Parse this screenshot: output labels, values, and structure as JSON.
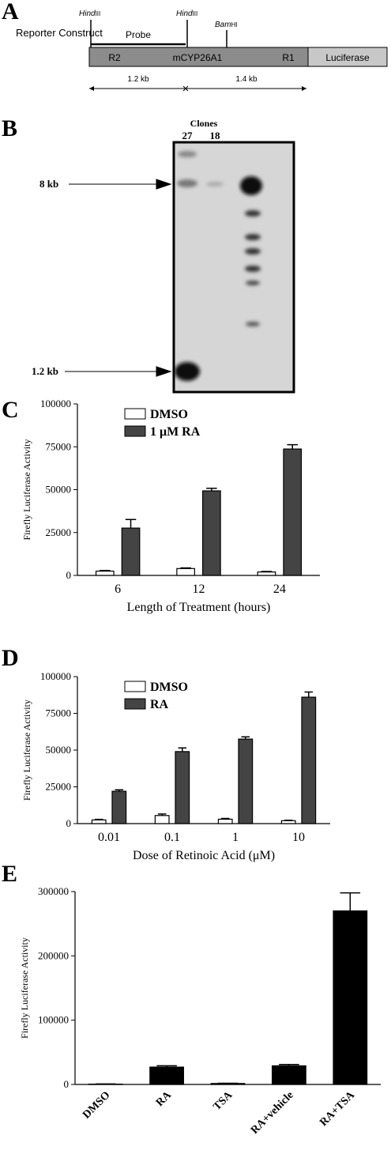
{
  "panel_labels": [
    "A",
    "B",
    "C",
    "D",
    "E"
  ],
  "construct": {
    "title": "Reporter Construct",
    "sites": [
      {
        "name": "Hind",
        "suffix": "III"
      },
      {
        "name": "Hind",
        "suffix": "III"
      },
      {
        "name": "Bam",
        "suffix": "HI"
      }
    ],
    "probe": "Probe",
    "regions": [
      "R2",
      "mCYP26A1",
      "R1"
    ],
    "reporter": "Luciferase",
    "distances": [
      "1.2 kb",
      "1.4 kb"
    ]
  },
  "blot": {
    "header": "Clones",
    "lanes": [
      "27",
      "18"
    ],
    "markers": [
      "8 kb",
      "1.2 kb"
    ]
  },
  "chart_data": [
    {
      "type": "bar",
      "ylabel": "Firefly Luciferase Activity",
      "xlabel": "Length of Treatment (hours)",
      "categories": [
        "6",
        "12",
        "24"
      ],
      "series": [
        {
          "name": "DMSO",
          "color": "#ffffff",
          "values": [
            2500,
            4000,
            2000
          ],
          "errors": [
            400,
            400,
            300
          ]
        },
        {
          "name": "1 μM RA",
          "color": "#444444",
          "values": [
            27600,
            49300,
            73700
          ],
          "errors": [
            5000,
            1500,
            2500
          ]
        }
      ],
      "ylim": [
        0,
        100000
      ],
      "yticks": [
        0,
        25000,
        50000,
        75000,
        100000
      ],
      "legend": "upper left"
    },
    {
      "type": "bar",
      "ylabel": "Firefly Luciferase Activity",
      "xlabel": "Dose of Retinoic Acid (μM)",
      "categories": [
        "0.01",
        "0.1",
        "1",
        "10"
      ],
      "series": [
        {
          "name": "DMSO",
          "color": "#ffffff",
          "values": [
            2500,
            5500,
            3000,
            2000
          ],
          "errors": [
            400,
            1000,
            500,
            300
          ]
        },
        {
          "name": "RA",
          "color": "#444444",
          "values": [
            22000,
            49000,
            57500,
            86000
          ],
          "errors": [
            1000,
            2500,
            1500,
            3500
          ]
        }
      ],
      "ylim": [
        0,
        100000
      ],
      "yticks": [
        0,
        25000,
        50000,
        75000,
        100000
      ],
      "legend": "upper left"
    },
    {
      "type": "bar",
      "ylabel": "Firefly Luciferase Activity",
      "categories": [
        "DMSO",
        "RA",
        "TSA",
        "RA+vehicle",
        "RA+TSA"
      ],
      "values": [
        500,
        27000,
        1500,
        29000,
        270000
      ],
      "errors": [
        200,
        2000,
        300,
        2000,
        28000
      ],
      "color": "#000000",
      "ylim": [
        0,
        300000
      ],
      "yticks": [
        0,
        100000,
        200000,
        300000
      ]
    }
  ]
}
